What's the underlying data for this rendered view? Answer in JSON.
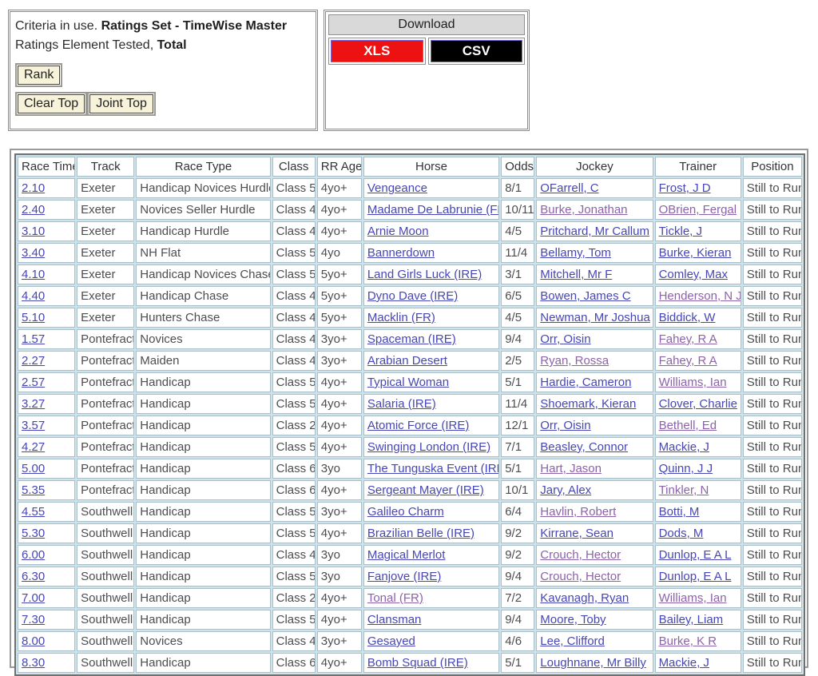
{
  "colors": {
    "link_blue": "#4646b4",
    "link_visited": "#8c62a8",
    "xls_bg": "#ee1111",
    "csv_bg": "#000000",
    "download_header_bg": "#d9d9d9",
    "button_bg": "#f7f2da",
    "grid_bg": "#cfe3ea"
  },
  "criteria": {
    "segments": [
      {
        "text": "Criteria in use. ",
        "bold": false
      },
      {
        "text": "Ratings Set - TimeWise Master",
        "bold": true
      },
      {
        "text": " Ratings Element Tested, ",
        "bold": false
      },
      {
        "text": "Total",
        "bold": true
      }
    ],
    "buttons": {
      "rank": "Rank",
      "clear_top": "Clear Top",
      "joint_top": "Joint Top"
    }
  },
  "download": {
    "title": "Download",
    "buttons": [
      {
        "label": "XLS",
        "bg": "#ee1111"
      },
      {
        "label": "CSV",
        "bg": "#000000"
      }
    ]
  },
  "table": {
    "headers": [
      "Race Time",
      "Track",
      "Race Type",
      "Class",
      "RR Age",
      "Horse",
      "Odds",
      "Jockey",
      "Trainer",
      "Position"
    ],
    "rows": [
      {
        "time": "2.10",
        "track": "Exeter",
        "race_type": "Handicap Novices Hurdle",
        "class": "Class 5",
        "rr_age": "4yo+",
        "horse": "Vengeance",
        "horse_visited": false,
        "odds": "8/1",
        "jockey": "OFarrell, C",
        "jockey_visited": false,
        "trainer": "Frost, J D",
        "trainer_visited": false,
        "position": "Still to Run"
      },
      {
        "time": "2.40",
        "track": "Exeter",
        "race_type": "Novices Seller Hurdle",
        "class": "Class 4",
        "rr_age": "4yo+",
        "horse": "Madame De Labrunie (FR)",
        "horse_visited": false,
        "odds": "10/11",
        "jockey": "Burke, Jonathan",
        "jockey_visited": true,
        "trainer": "OBrien, Fergal",
        "trainer_visited": true,
        "position": "Still to Run"
      },
      {
        "time": "3.10",
        "track": "Exeter",
        "race_type": "Handicap Hurdle",
        "class": "Class 4",
        "rr_age": "4yo+",
        "horse": "Arnie Moon",
        "horse_visited": false,
        "odds": "4/5",
        "jockey": "Pritchard, Mr Callum",
        "jockey_visited": false,
        "trainer": "Tickle, J",
        "trainer_visited": false,
        "position": "Still to Run"
      },
      {
        "time": "3.40",
        "track": "Exeter",
        "race_type": "NH Flat",
        "class": "Class 5",
        "rr_age": "4yo",
        "horse": "Bannerdown",
        "horse_visited": false,
        "odds": "11/4",
        "jockey": "Bellamy, Tom",
        "jockey_visited": false,
        "trainer": "Burke, Kieran",
        "trainer_visited": false,
        "position": "Still to Run"
      },
      {
        "time": "4.10",
        "track": "Exeter",
        "race_type": "Handicap Novices Chase",
        "class": "Class 5",
        "rr_age": "5yo+",
        "horse": "Land Girls Luck (IRE)",
        "horse_visited": false,
        "odds": "3/1",
        "jockey": "Mitchell, Mr F",
        "jockey_visited": false,
        "trainer": "Comley, Max",
        "trainer_visited": false,
        "position": "Still to Run"
      },
      {
        "time": "4.40",
        "track": "Exeter",
        "race_type": "Handicap Chase",
        "class": "Class 4",
        "rr_age": "5yo+",
        "horse": "Dyno Dave (IRE)",
        "horse_visited": false,
        "odds": "6/5",
        "jockey": "Bowen, James C",
        "jockey_visited": false,
        "trainer": "Henderson, N J",
        "trainer_visited": true,
        "position": "Still to Run"
      },
      {
        "time": "5.10",
        "track": "Exeter",
        "race_type": "Hunters Chase",
        "class": "Class 4",
        "rr_age": "5yo+",
        "horse": "Macklin (FR)",
        "horse_visited": false,
        "odds": "4/5",
        "jockey": "Newman, Mr Joshua",
        "jockey_visited": false,
        "trainer": "Biddick, W",
        "trainer_visited": false,
        "position": "Still to Run"
      },
      {
        "time": "1.57",
        "track": "Pontefract",
        "race_type": "Novices",
        "class": "Class 4",
        "rr_age": "3yo+",
        "horse": "Spaceman (IRE)",
        "horse_visited": false,
        "odds": "9/4",
        "jockey": "Orr, Oisin",
        "jockey_visited": false,
        "trainer": "Fahey, R A",
        "trainer_visited": true,
        "position": "Still to Run"
      },
      {
        "time": "2.27",
        "track": "Pontefract",
        "race_type": "Maiden",
        "class": "Class 4",
        "rr_age": "3yo+",
        "horse": "Arabian Desert",
        "horse_visited": false,
        "odds": "2/5",
        "jockey": "Ryan, Rossa",
        "jockey_visited": true,
        "trainer": "Fahey, R A",
        "trainer_visited": true,
        "position": "Still to Run"
      },
      {
        "time": "2.57",
        "track": "Pontefract",
        "race_type": "Handicap",
        "class": "Class 5",
        "rr_age": "4yo+",
        "horse": "Typical Woman",
        "horse_visited": false,
        "odds": "5/1",
        "jockey": "Hardie, Cameron",
        "jockey_visited": false,
        "trainer": "Williams, Ian",
        "trainer_visited": true,
        "position": "Still to Run"
      },
      {
        "time": "3.27",
        "track": "Pontefract",
        "race_type": "Handicap",
        "class": "Class 5",
        "rr_age": "4yo+",
        "horse": "Salaria (IRE)",
        "horse_visited": false,
        "odds": "11/4",
        "jockey": "Shoemark, Kieran",
        "jockey_visited": false,
        "trainer": "Clover, Charlie",
        "trainer_visited": false,
        "position": "Still to Run"
      },
      {
        "time": "3.57",
        "track": "Pontefract",
        "race_type": "Handicap",
        "class": "Class 2",
        "rr_age": "4yo+",
        "horse": "Atomic Force (IRE)",
        "horse_visited": false,
        "odds": "12/1",
        "jockey": "Orr, Oisin",
        "jockey_visited": false,
        "trainer": "Bethell, Ed",
        "trainer_visited": true,
        "position": "Still to Run"
      },
      {
        "time": "4.27",
        "track": "Pontefract",
        "race_type": "Handicap",
        "class": "Class 5",
        "rr_age": "4yo+",
        "horse": "Swinging London (IRE)",
        "horse_visited": false,
        "odds": "7/1",
        "jockey": "Beasley, Connor",
        "jockey_visited": false,
        "trainer": "Mackie, J",
        "trainer_visited": false,
        "position": "Still to Run"
      },
      {
        "time": "5.00",
        "track": "Pontefract",
        "race_type": "Handicap",
        "class": "Class 6",
        "rr_age": "3yo",
        "horse": "The Tunguska Event (IRE)",
        "horse_visited": false,
        "odds": "5/1",
        "jockey": "Hart, Jason",
        "jockey_visited": true,
        "trainer": "Quinn, J J",
        "trainer_visited": false,
        "position": "Still to Run"
      },
      {
        "time": "5.35",
        "track": "Pontefract",
        "race_type": "Handicap",
        "class": "Class 6",
        "rr_age": "4yo+",
        "horse": "Sergeant Mayer (IRE)",
        "horse_visited": false,
        "odds": "10/1",
        "jockey": "Jary, Alex",
        "jockey_visited": false,
        "trainer": "Tinkler, N",
        "trainer_visited": true,
        "position": "Still to Run"
      },
      {
        "time": "4.55",
        "track": "Southwell",
        "race_type": "Handicap",
        "class": "Class 5",
        "rr_age": "3yo+",
        "horse": "Galileo Charm",
        "horse_visited": false,
        "odds": "6/4",
        "jockey": "Havlin, Robert",
        "jockey_visited": true,
        "trainer": "Botti, M",
        "trainer_visited": false,
        "position": "Still to Run"
      },
      {
        "time": "5.30",
        "track": "Southwell",
        "race_type": "Handicap",
        "class": "Class 5",
        "rr_age": "4yo+",
        "horse": "Brazilian Belle (IRE)",
        "horse_visited": false,
        "odds": "9/2",
        "jockey": "Kirrane, Sean",
        "jockey_visited": false,
        "trainer": "Dods, M",
        "trainer_visited": false,
        "position": "Still to Run"
      },
      {
        "time": "6.00",
        "track": "Southwell",
        "race_type": "Handicap",
        "class": "Class 4",
        "rr_age": "3yo",
        "horse": "Magical Merlot",
        "horse_visited": false,
        "odds": "9/2",
        "jockey": "Crouch, Hector",
        "jockey_visited": true,
        "trainer": "Dunlop, E A L",
        "trainer_visited": false,
        "position": "Still to Run"
      },
      {
        "time": "6.30",
        "track": "Southwell",
        "race_type": "Handicap",
        "class": "Class 5",
        "rr_age": "3yo",
        "horse": "Fanjove (IRE)",
        "horse_visited": false,
        "odds": "9/4",
        "jockey": "Crouch, Hector",
        "jockey_visited": true,
        "trainer": "Dunlop, E A L",
        "trainer_visited": false,
        "position": "Still to Run"
      },
      {
        "time": "7.00",
        "track": "Southwell",
        "race_type": "Handicap",
        "class": "Class 2",
        "rr_age": "4yo+",
        "horse": "Tonal (FR)",
        "horse_visited": true,
        "odds": "7/2",
        "jockey": "Kavanagh, Ryan",
        "jockey_visited": false,
        "trainer": "Williams, Ian",
        "trainer_visited": true,
        "position": "Still to Run"
      },
      {
        "time": "7.30",
        "track": "Southwell",
        "race_type": "Handicap",
        "class": "Class 5",
        "rr_age": "4yo+",
        "horse": "Clansman",
        "horse_visited": false,
        "odds": "9/4",
        "jockey": "Moore, Toby",
        "jockey_visited": false,
        "trainer": "Bailey, Liam",
        "trainer_visited": false,
        "position": "Still to Run"
      },
      {
        "time": "8.00",
        "track": "Southwell",
        "race_type": "Novices",
        "class": "Class 4",
        "rr_age": "3yo+",
        "horse": "Gesayed",
        "horse_visited": false,
        "odds": "4/6",
        "jockey": "Lee, Clifford",
        "jockey_visited": false,
        "trainer": "Burke, K R",
        "trainer_visited": true,
        "position": "Still to Run"
      },
      {
        "time": "8.30",
        "track": "Southwell",
        "race_type": "Handicap",
        "class": "Class 6",
        "rr_age": "4yo+",
        "horse": "Bomb Squad (IRE)",
        "horse_visited": false,
        "odds": "5/1",
        "jockey": "Loughnane, Mr Billy",
        "jockey_visited": false,
        "trainer": "Mackie, J",
        "trainer_visited": false,
        "position": "Still to Run"
      }
    ]
  }
}
